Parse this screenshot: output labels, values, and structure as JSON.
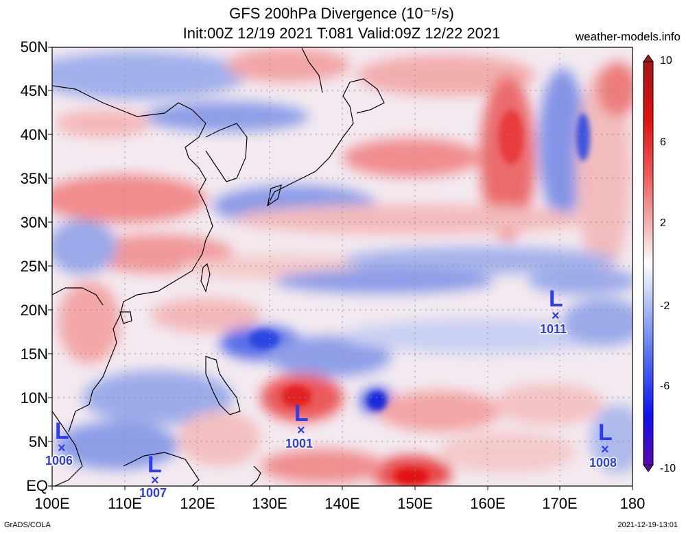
{
  "title_line1": "GFS 200hPa Divergence (10⁻⁵/s)",
  "title_line2": "Init:00Z 12/19 2021 T:081 Valid:09Z 12/22 2021",
  "site": "weather-models.info",
  "footer_left": "GrADS/COLA",
  "footer_right": "2021-12-19-13:01",
  "lat_labels": [
    "50N",
    "45N",
    "40N",
    "35N",
    "30N",
    "25N",
    "20N",
    "15N",
    "10N",
    "5N",
    "EQ"
  ],
  "lon_labels": [
    "100E",
    "110E",
    "120E",
    "130E",
    "140E",
    "150E",
    "160E",
    "170E",
    "180"
  ],
  "colorbar": {
    "labels": [
      "10",
      "6",
      "2",
      "-2",
      "-6",
      "-10"
    ],
    "colors": [
      "#5b0aa8",
      "#1010f0",
      "#5a78f0",
      "#b8c6f5",
      "#ffffff",
      "#f5b3b3",
      "#f05050",
      "#e01010",
      "#a01818"
    ]
  },
  "lows": [
    {
      "symbol": "L",
      "pressure": "1011"
    },
    {
      "symbol": "L",
      "pressure": "1001"
    },
    {
      "symbol": "L",
      "pressure": "1006"
    },
    {
      "symbol": "L",
      "pressure": "1007"
    },
    {
      "symbol": "L",
      "pressure": "1008"
    }
  ]
}
